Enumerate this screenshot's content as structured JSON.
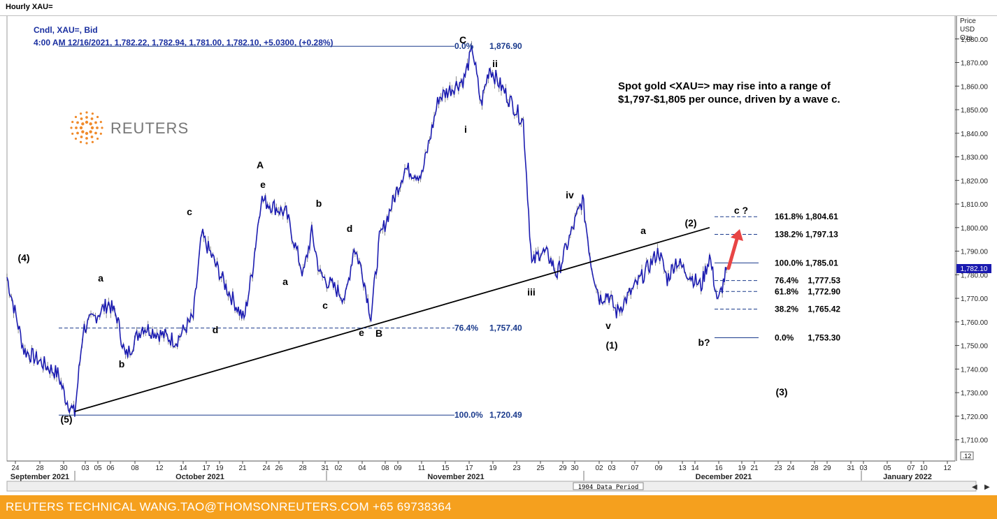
{
  "window_title": "Hourly XAU=",
  "header": {
    "line1": "Cndl, XAU=, Bid",
    "line2": "4:00 AM 12/16/2021, 1,782.22, 1,782.94, 1,781.00, 1,782.10, +5.0300, (+0.28%)"
  },
  "logo_text": "REUTERS",
  "annotation": {
    "line1": "Spot gold <XAU=> may rise into a range of",
    "line2": "$1,797-$1,805 per ounce, driven by a wave c."
  },
  "axis": {
    "y_title_lines": [
      "Price",
      "USD",
      "Ozs"
    ],
    "current_price_label": "1,782.10",
    "scale_label": ".12",
    "data_period_label": "1904 Data Period"
  },
  "footer_text": "REUTERS TECHNICAL  WANG.TAO@THOMSONREUTERS.COM  +65 69738364",
  "colors": {
    "price": "#1c1cb0",
    "fib": "#1a3a8c",
    "footer": "#f5a01e",
    "arrow": "#e84545"
  },
  "chart_data": {
    "type": "line",
    "title": "Hourly XAU=",
    "ylabel": "Price USD Ozs",
    "ylim": [
      1701,
      1890
    ],
    "y_ticks": [
      1710,
      1720,
      1730,
      1740,
      1750,
      1760,
      1770,
      1780,
      1790,
      1800,
      1810,
      1820,
      1830,
      1840,
      1850,
      1860,
      1870,
      1880
    ],
    "y_tick_labels": [
      "1,710.00",
      "1,720.00",
      "1,730.00",
      "1,740.00",
      "1,750.00",
      "1,760.00",
      "1,770.00",
      "1,780.00",
      "1,790.00",
      "1,800.00",
      "1,810.00",
      "1,820.00",
      "1,830.00",
      "1,840.00",
      "1,850.00",
      "1,860.00",
      "1,870.00",
      "1,880.00"
    ],
    "x_tick_labels": [
      "24",
      "28",
      "30",
      "03",
      "05",
      "06",
      "08",
      "12",
      "14",
      "17",
      "19",
      "21",
      "24",
      "26",
      "28",
      "31",
      "02",
      "04",
      "08",
      "09",
      "11",
      "15",
      "17",
      "19",
      "23",
      "25",
      "29",
      "30",
      "02",
      "03",
      "07",
      "09",
      "13",
      "14",
      "16",
      "19",
      "21",
      "23",
      "24",
      "28",
      "29",
      "31",
      "03",
      "05",
      "07",
      "10",
      "12"
    ],
    "month_labels": [
      "September 2021",
      "October 2021",
      "November 2021",
      "December 2021",
      "January 2022"
    ],
    "series": [
      {
        "name": "XAU= Bid",
        "x": [
          "2021-09-22",
          "2021-09-24",
          "2021-09-28",
          "2021-09-29",
          "2021-09-30",
          "2021-10-01",
          "2021-10-04",
          "2021-10-05",
          "2021-10-06",
          "2021-10-08",
          "2021-10-12",
          "2021-10-14",
          "2021-10-15",
          "2021-10-18",
          "2021-10-20",
          "2021-10-21",
          "2021-10-22",
          "2021-10-25",
          "2021-10-27",
          "2021-10-28",
          "2021-10-29",
          "2021-11-01",
          "2021-11-02",
          "2021-11-03",
          "2021-11-04",
          "2021-11-05",
          "2021-11-08",
          "2021-11-10",
          "2021-11-12",
          "2021-11-15",
          "2021-11-16",
          "2021-11-17",
          "2021-11-18",
          "2021-11-19",
          "2021-11-22",
          "2021-11-23",
          "2021-11-24",
          "2021-11-25",
          "2021-11-26",
          "2021-11-29",
          "2021-11-30",
          "2021-12-01",
          "2021-12-02",
          "2021-12-03",
          "2021-12-06",
          "2021-12-08",
          "2021-12-09",
          "2021-12-10",
          "2021-12-13",
          "2021-12-14",
          "2021-12-15",
          "2021-12-16"
        ],
        "y": [
          1779,
          1748,
          1738,
          1727,
          1721,
          1757,
          1768,
          1762,
          1745,
          1758,
          1752,
          1762,
          1797,
          1774,
          1761,
          1782,
          1812,
          1806,
          1780,
          1798,
          1780,
          1770,
          1792,
          1781,
          1762,
          1795,
          1825,
          1822,
          1855,
          1863,
          1876,
          1852,
          1868,
          1862,
          1845,
          1784,
          1790,
          1788,
          1780,
          1812,
          1785,
          1770,
          1772,
          1764,
          1779,
          1790,
          1778,
          1786,
          1775,
          1788,
          1768,
          1782
        ]
      }
    ],
    "fib_left": {
      "levels": [
        {
          "pct": "0.0%",
          "value": "1,876.90",
          "price": 1876.9
        },
        {
          "pct": "76.4%",
          "value": "1,757.40",
          "price": 1757.4
        },
        {
          "pct": "100.0%",
          "value": "1,720.49",
          "price": 1720.49
        }
      ]
    },
    "fib_right": {
      "levels": [
        {
          "label": "161.8% 1,804.61",
          "price": 1804.61
        },
        {
          "label": "138.2% 1,797.13",
          "price": 1797.13
        },
        {
          "label": "100.0% 1,785.01",
          "price": 1785.01
        },
        {
          "label": "76.4%    1,777.53",
          "price": 1777.53
        },
        {
          "label": "61.8%    1,772.90",
          "price": 1772.9
        },
        {
          "label": "38.2%    1,765.42",
          "price": 1765.42
        },
        {
          "label": "0.0%      1,753.30",
          "price": 1753.3
        }
      ]
    },
    "trendline": {
      "from": {
        "date": "2021-09-30",
        "price": 1722
      },
      "to": {
        "date": "2021-12-14",
        "price": 1800
      }
    },
    "wave_labels": [
      "(4)",
      "(5)",
      "a",
      "b",
      "c",
      "d",
      "A",
      "e",
      "a",
      "b",
      "c",
      "d",
      "e",
      "B",
      "C",
      "i",
      "ii",
      "iii",
      "iv",
      "v",
      "(1)",
      "a",
      "(2)",
      "b?",
      "c ?",
      "(3)"
    ]
  }
}
